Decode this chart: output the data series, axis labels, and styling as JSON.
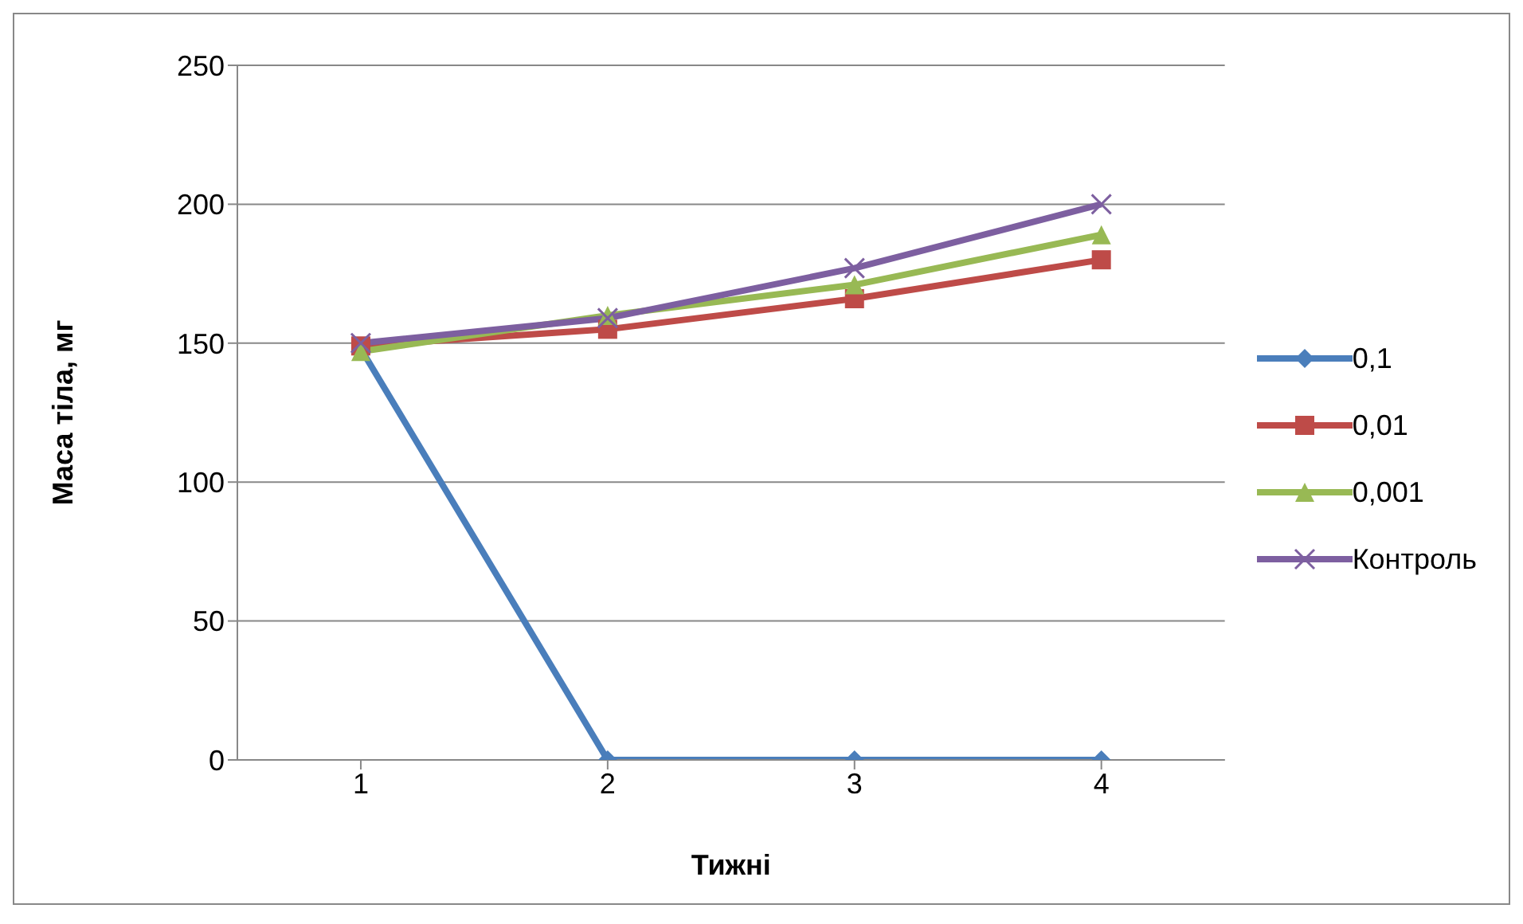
{
  "chart_data": {
    "type": "line",
    "xlabel": "Тижні",
    "ylabel": "Маса тіла, мг",
    "categories": [
      "1",
      "2",
      "3",
      "4"
    ],
    "series": [
      {
        "name": "0,1",
        "color": "#4a7ebb",
        "marker": "diamond",
        "values": [
          148,
          0,
          0,
          0
        ]
      },
      {
        "name": "0,01",
        "color": "#be4b48",
        "marker": "square",
        "values": [
          149,
          155,
          166,
          180
        ]
      },
      {
        "name": "0,001",
        "color": "#98b954",
        "marker": "triangle",
        "values": [
          147,
          160,
          171,
          189
        ]
      },
      {
        "name": "Контроль",
        "color": "#7d5fa0",
        "marker": "cross",
        "values": [
          150,
          159,
          177,
          200
        ]
      }
    ],
    "ylim": [
      0,
      250
    ],
    "yticks": [
      0,
      50,
      100,
      150,
      200,
      250
    ],
    "grid": "y",
    "legend": "right"
  }
}
